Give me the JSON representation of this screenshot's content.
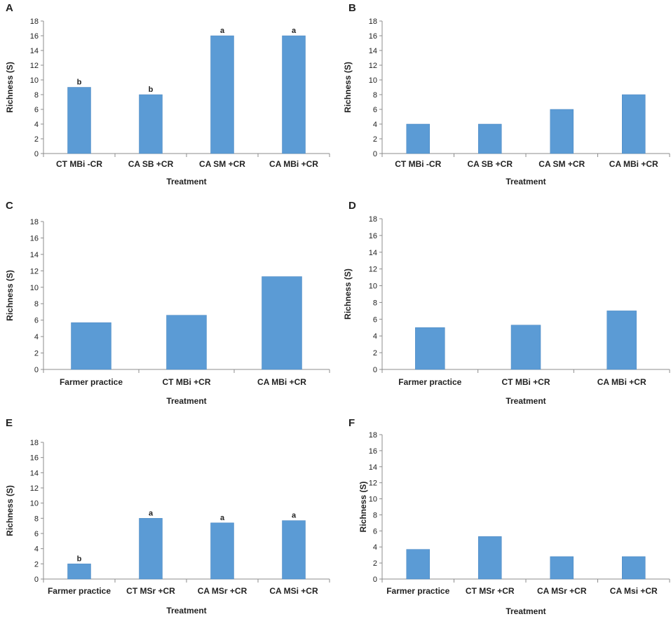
{
  "figure": {
    "bar_color": "#5b9bd5",
    "bar_stroke": "#4a86c0",
    "axis_color": "#8c8c8c"
  },
  "chart_data": [
    {
      "panel": "A",
      "type": "bar",
      "categories": [
        "CT MBi -CR",
        "CA SB +CR",
        "CA SM +CR",
        "CA MBi +CR"
      ],
      "values": [
        9,
        8,
        16,
        16
      ],
      "significance": [
        "b",
        "b",
        "a",
        "a"
      ],
      "xlabel": "Treatment",
      "ylabel": "Richness (S)",
      "ylim": [
        0,
        18
      ],
      "yticks": [
        0,
        2,
        4,
        6,
        8,
        10,
        12,
        14,
        16,
        18
      ]
    },
    {
      "panel": "B",
      "type": "bar",
      "categories": [
        "CT MBi -CR",
        "CA SB +CR",
        "CA SM +CR",
        "CA MBi +CR"
      ],
      "values": [
        4,
        4,
        6,
        8
      ],
      "xlabel": "Treatment",
      "ylabel": "Richness (S)",
      "ylim": [
        0,
        18
      ],
      "yticks": [
        0,
        2,
        4,
        6,
        8,
        10,
        12,
        14,
        16,
        18
      ]
    },
    {
      "panel": "C",
      "type": "bar",
      "categories": [
        "Farmer practice",
        "CT MBi +CR",
        "CA MBi +CR"
      ],
      "values": [
        5.7,
        6.6,
        11.3
      ],
      "xlabel": "Treatment",
      "ylabel": "Richness (S)",
      "ylim": [
        0,
        18
      ],
      "yticks": [
        0,
        2,
        4,
        6,
        8,
        10,
        12,
        14,
        16,
        18
      ]
    },
    {
      "panel": "D",
      "type": "bar",
      "categories": [
        "Farmer practice",
        "CT MBi +CR",
        "CA MBi +CR"
      ],
      "values": [
        5.0,
        5.3,
        7.0
      ],
      "xlabel": "Treatment",
      "ylabel": "Richness (S)",
      "ylim": [
        0,
        18
      ],
      "yticks": [
        0,
        2,
        4,
        6,
        8,
        10,
        12,
        14,
        16,
        18
      ]
    },
    {
      "panel": "E",
      "type": "bar",
      "categories": [
        "Farmer practice",
        "CT MSr +CR",
        "CA MSr +CR",
        "CA MSi +CR"
      ],
      "values": [
        2,
        8,
        7.4,
        7.7
      ],
      "significance": [
        "b",
        "a",
        "a",
        "a"
      ],
      "xlabel": "Treatment",
      "ylabel": "Richness (S)",
      "ylim": [
        0,
        18
      ],
      "yticks": [
        0,
        2,
        4,
        6,
        8,
        10,
        12,
        14,
        16,
        18
      ]
    },
    {
      "panel": "F",
      "type": "bar",
      "categories": [
        "Farmer practice",
        "CT MSr +CR",
        "CA MSr +CR",
        "CA Msi +CR"
      ],
      "values": [
        3.7,
        5.3,
        2.8,
        2.8
      ],
      "xlabel": "Treatment",
      "ylabel": "Richness (S)",
      "ylim": [
        0,
        18
      ],
      "yticks": [
        0,
        2,
        4,
        6,
        8,
        10,
        12,
        14,
        16,
        18
      ]
    }
  ]
}
